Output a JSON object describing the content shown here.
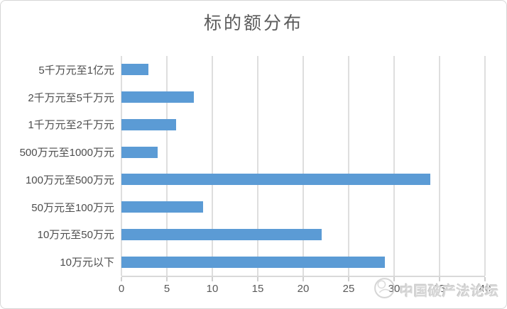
{
  "title": "标的额分布",
  "watermark": {
    "text": "中国破产法论坛",
    "logo": "forum-emblem-icon"
  },
  "chart_data": {
    "type": "bar",
    "orientation": "horizontal",
    "title": "标的额分布",
    "categories": [
      "5千万元至1亿元",
      "2千万元至5千万元",
      "1千万元至2千万元",
      "500万元至1000万元",
      "100万元至500万元",
      "50万元至100万元",
      "10万元至50万元",
      "10万元以下"
    ],
    "values": [
      3,
      8,
      6,
      4,
      34,
      9,
      22,
      29
    ],
    "xlabel": "",
    "ylabel": "",
    "xlim": [
      0,
      40
    ],
    "xticks": [
      0,
      5,
      10,
      15,
      20,
      25,
      30,
      35,
      40
    ],
    "grid": true,
    "legend": false,
    "bar_color": "#5B9BD5",
    "gridline_color": "#DEDEDE",
    "axis_label_color": "#595959",
    "title_color": "#5C5C5C"
  }
}
